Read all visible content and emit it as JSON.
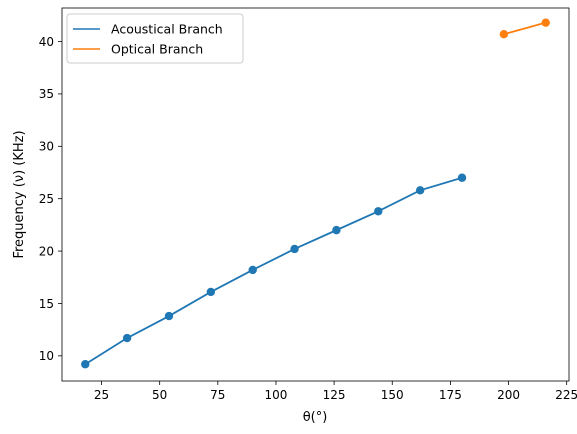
{
  "chart_data": {
    "type": "line",
    "xlabel": "θ(°)",
    "ylabel": "Frequency (ν) (KHz)",
    "xlim": [
      8,
      226
    ],
    "ylim": [
      7.6,
      43.2
    ],
    "xticks": [
      25,
      50,
      75,
      100,
      125,
      150,
      175,
      200,
      225
    ],
    "yticks": [
      10,
      15,
      20,
      25,
      30,
      35,
      40
    ],
    "grid": false,
    "legend_position": "top-left",
    "series": [
      {
        "name": "Acoustical Branch",
        "color": "#1f77b4",
        "x": [
          18,
          36,
          54,
          72,
          90,
          108,
          126,
          144,
          162,
          180
        ],
        "y": [
          9.2,
          11.7,
          13.8,
          16.1,
          18.2,
          20.2,
          22.0,
          23.8,
          25.8,
          27.0
        ]
      },
      {
        "name": "Optical Branch",
        "color": "#ff7f0e",
        "x": [
          198,
          216
        ],
        "y": [
          40.7,
          41.8
        ]
      }
    ]
  }
}
